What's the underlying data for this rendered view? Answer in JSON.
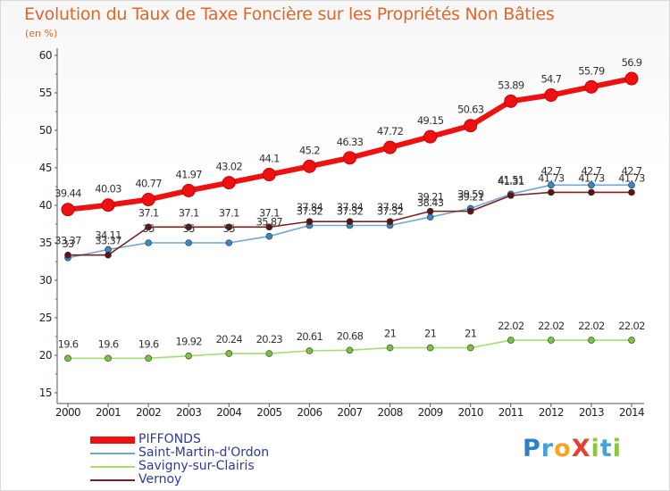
{
  "title": "Evolution du Taux de Taxe Foncière sur les Propriétés Non Bâties",
  "unit": "(en %)",
  "logo": {
    "text": "ProXiti",
    "letters": [
      {
        "ch": "P",
        "color": "#2f7fc4"
      },
      {
        "ch": "r",
        "color": "#4aa0d8"
      },
      {
        "ch": "o",
        "color": "#f5a623"
      },
      {
        "ch": "X",
        "color": "#e4412f"
      },
      {
        "ch": "i",
        "color": "#8cc63e"
      },
      {
        "ch": "t",
        "color": "#4aa0d8"
      },
      {
        "ch": "i",
        "color": "#8cc63e"
      }
    ]
  },
  "chart_data": {
    "type": "line",
    "x": [
      "2000",
      "2001",
      "2002",
      "2003",
      "2004",
      "2005",
      "2006",
      "2007",
      "2008",
      "2009",
      "2010",
      "2011",
      "2012",
      "2013",
      "2014"
    ],
    "ylim": [
      15,
      60
    ],
    "yticks": [
      15,
      20,
      25,
      30,
      35,
      40,
      45,
      50,
      55,
      60
    ],
    "grid": false,
    "legend_position": "bottom-left",
    "series": [
      {
        "name": "PIFFONDS",
        "color": "#ee1111",
        "marker": "#ee1111",
        "values": [
          39.44,
          40.03,
          40.77,
          41.97,
          43.02,
          44.1,
          45.2,
          46.33,
          47.72,
          49.15,
          50.63,
          53.89,
          54.7,
          55.79,
          56.9
        ],
        "labels": [
          "39.44",
          "40.03",
          "40.77",
          "41.97",
          "43.02",
          "44.1",
          "45.2",
          "46.33",
          "47.72",
          "49.15",
          "50.63",
          "53.89",
          "54.7",
          "55.79",
          "56.9"
        ]
      },
      {
        "name": "Saint-Martin-d'Ordon",
        "color": "#6fa8d8",
        "marker": "#3b85c4",
        "values": [
          33.0,
          34.11,
          35.0,
          35.0,
          35.0,
          35.87,
          37.32,
          37.32,
          37.32,
          38.43,
          39.59,
          41.51,
          42.7,
          42.7,
          42.7
        ],
        "labels": [
          "33",
          "34.11",
          "35",
          "35",
          "35",
          "35.87",
          "37.32",
          "37.32",
          "37.32",
          "38.43",
          "39.59",
          "41.51",
          "42.7",
          "42.7",
          "42.7"
        ]
      },
      {
        "name": "Savigny-sur-Clairis",
        "color": "#a8dc72",
        "marker": "#7cc242",
        "values": [
          19.6,
          19.6,
          19.6,
          19.92,
          20.24,
          20.23,
          20.61,
          20.68,
          21.0,
          21.0,
          21.0,
          22.02,
          22.02,
          22.02,
          22.02
        ],
        "labels": [
          "19.6",
          "19.6",
          "19.6",
          "19.92",
          "20.24",
          "20.23",
          "20.61",
          "20.68",
          "21",
          "21",
          "21",
          "22.02",
          "22.02",
          "22.02",
          "22.02"
        ]
      },
      {
        "name": "Vernoy",
        "color": "#7a2020",
        "marker": "#5a1414",
        "values": [
          33.37,
          33.37,
          37.1,
          37.1,
          37.1,
          37.1,
          37.84,
          37.84,
          37.84,
          39.21,
          39.21,
          41.31,
          41.73,
          41.73,
          41.73
        ],
        "labels": [
          "33.37",
          "33.37",
          "37.1",
          "37.1",
          "37.1",
          "37.1",
          "37.84",
          "37.84",
          "37.84",
          "39.21",
          "39.21",
          "41.31",
          "41.73",
          "41.73",
          "41.73"
        ]
      }
    ]
  }
}
